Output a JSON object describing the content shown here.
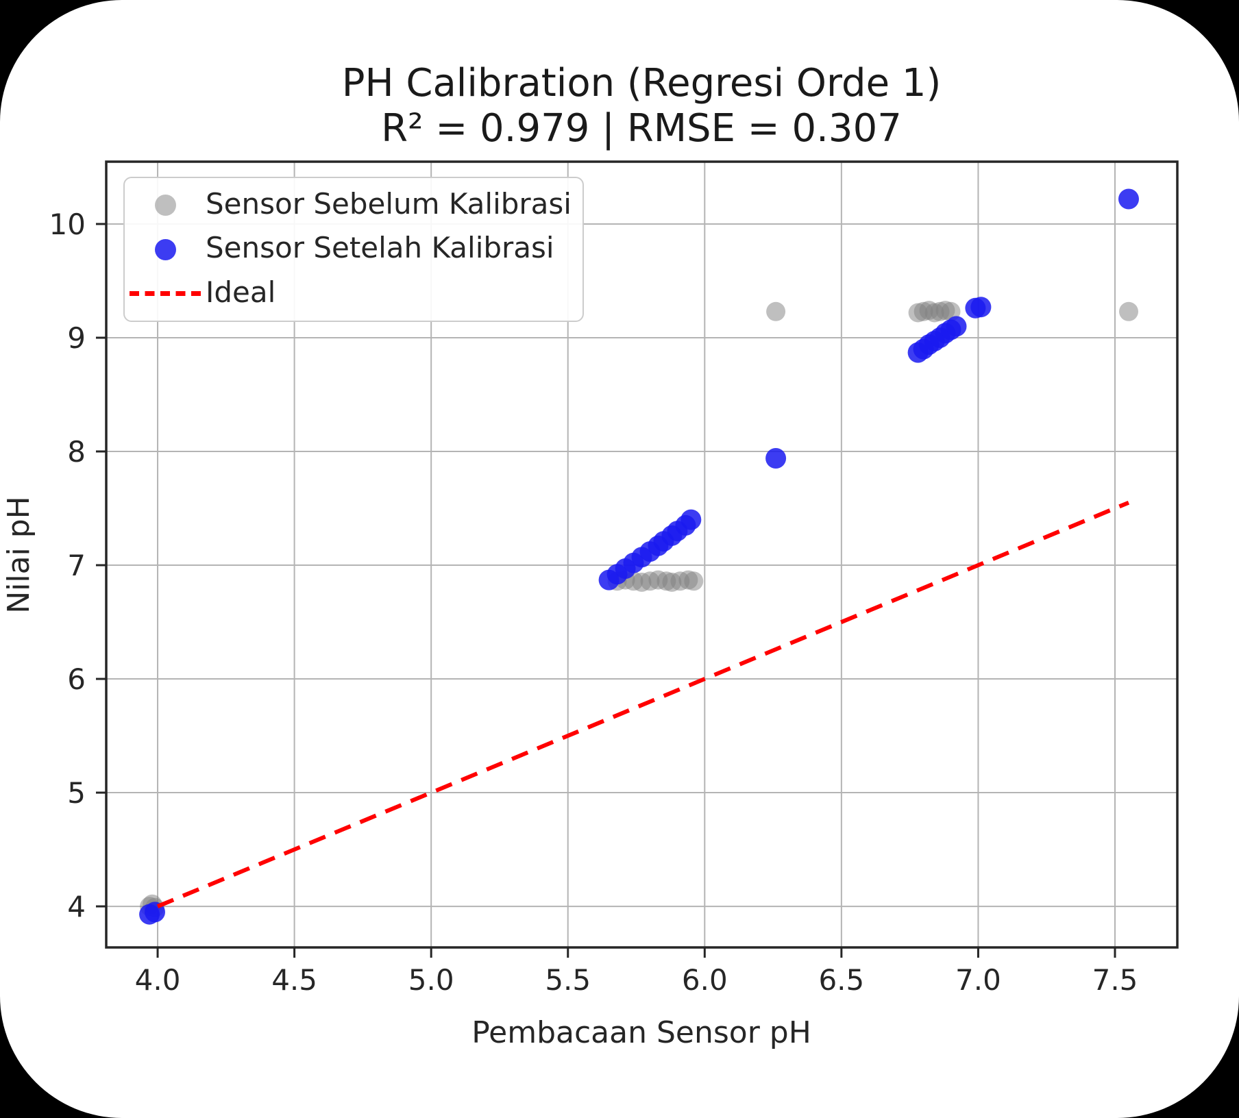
{
  "figure": {
    "background_color": "#ffffff",
    "outer_background_color": "#000000"
  },
  "chart_data": {
    "type": "scatter",
    "title": "PH Calibration (Regresi Orde 1)",
    "subtitle": "R² = 0.979 | RMSE = 0.307",
    "xlabel": "Pembacaan Sensor pH",
    "ylabel": "Nilai pH",
    "xlim": [
      3.812,
      7.728
    ],
    "ylim": [
      3.639,
      10.548
    ],
    "xticks": [
      4.0,
      4.5,
      5.0,
      5.5,
      6.0,
      6.5,
      7.0,
      7.5
    ],
    "xtick_labels": [
      "4.0",
      "4.5",
      "5.0",
      "5.5",
      "6.0",
      "6.5",
      "7.0",
      "7.5"
    ],
    "yticks": [
      4,
      5,
      6,
      7,
      8,
      9,
      10
    ],
    "ytick_labels": [
      "4",
      "5",
      "6",
      "7",
      "8",
      "9",
      "10"
    ],
    "grid": true,
    "grid_color": "#b4b4b4",
    "axes_edge_color": "#262626",
    "legend_position": "upper left",
    "series": [
      {
        "name": "Sensor Sebelum Kalibrasi",
        "type": "scatter",
        "color": "#808080",
        "opacity": 0.5,
        "marker_radius": 14,
        "points": [
          [
            3.97,
            4.0
          ],
          [
            3.98,
            4.02
          ],
          [
            3.99,
            3.99
          ],
          [
            5.68,
            6.86
          ],
          [
            5.71,
            6.87
          ],
          [
            5.74,
            6.86
          ],
          [
            5.77,
            6.85
          ],
          [
            5.8,
            6.86
          ],
          [
            5.83,
            6.87
          ],
          [
            5.86,
            6.86
          ],
          [
            5.88,
            6.85
          ],
          [
            5.91,
            6.86
          ],
          [
            5.94,
            6.87
          ],
          [
            5.96,
            6.86
          ],
          [
            6.26,
            9.23
          ],
          [
            6.78,
            9.22
          ],
          [
            6.8,
            9.23
          ],
          [
            6.82,
            9.24
          ],
          [
            6.84,
            9.22
          ],
          [
            6.86,
            9.23
          ],
          [
            6.88,
            9.24
          ],
          [
            6.9,
            9.23
          ],
          [
            7.55,
            9.23
          ]
        ]
      },
      {
        "name": "Sensor Setelah Kalibrasi",
        "type": "scatter",
        "color": "#1a1af0",
        "opacity": 0.85,
        "marker_radius": 15,
        "points": [
          [
            3.97,
            3.93
          ],
          [
            3.99,
            3.95
          ],
          [
            5.65,
            6.87
          ],
          [
            5.68,
            6.92
          ],
          [
            5.71,
            6.97
          ],
          [
            5.74,
            7.02
          ],
          [
            5.77,
            7.07
          ],
          [
            5.8,
            7.12
          ],
          [
            5.83,
            7.17
          ],
          [
            5.85,
            7.21
          ],
          [
            5.88,
            7.26
          ],
          [
            5.9,
            7.3
          ],
          [
            5.93,
            7.35
          ],
          [
            5.95,
            7.4
          ],
          [
            6.26,
            7.94
          ],
          [
            6.78,
            8.87
          ],
          [
            6.8,
            8.9
          ],
          [
            6.82,
            8.94
          ],
          [
            6.84,
            8.97
          ],
          [
            6.86,
            9.0
          ],
          [
            6.88,
            9.04
          ],
          [
            6.9,
            9.07
          ],
          [
            6.92,
            9.1
          ],
          [
            6.99,
            9.26
          ],
          [
            7.01,
            9.27
          ],
          [
            7.55,
            10.22
          ]
        ]
      },
      {
        "name": "Ideal",
        "type": "line",
        "style": "dashed",
        "color": "#ff0000",
        "line_width": 6,
        "points": [
          [
            4.0,
            4.0
          ],
          [
            7.55,
            7.55
          ]
        ]
      }
    ]
  },
  "legend": {
    "items": [
      {
        "label": "Sensor Sebelum Kalibrasi",
        "marker": "dot"
      },
      {
        "label": "Sensor Setelah Kalibrasi",
        "marker": "dot"
      },
      {
        "label": "Ideal",
        "marker": "dashed-line"
      }
    ]
  }
}
